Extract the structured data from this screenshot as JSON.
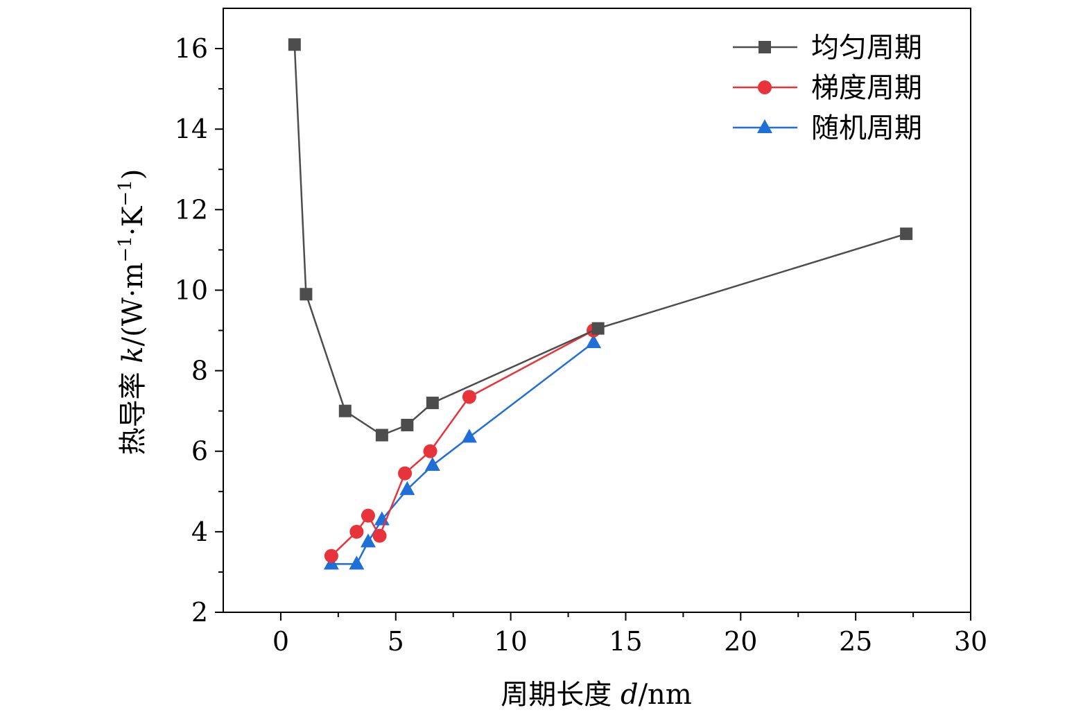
{
  "chart_data": {
    "type": "line",
    "title": "",
    "xlabel": "周期长度 d/nm",
    "ylabel": "热导率 k/(W·m−1·K−1)",
    "xlabel_parts": {
      "prefix": "周期长度 ",
      "var": "d",
      "suffix": "/nm"
    },
    "ylabel_parts": {
      "prefix": "热导率 ",
      "var": "k",
      "unit_a": "/(W·m",
      "sup_a": "−1",
      "unit_b": "·K",
      "sup_b": "−1",
      "close": ")"
    },
    "xlim": [
      -2.5,
      30
    ],
    "ylim": [
      2,
      17
    ],
    "x_ticks": [
      0,
      5,
      10,
      15,
      20,
      25,
      30
    ],
    "y_ticks": [
      2,
      4,
      6,
      8,
      10,
      12,
      14,
      16
    ],
    "legend_position": "top-right",
    "series": [
      {
        "name": "均匀周期",
        "color": "#4d4d4d",
        "marker": "square",
        "x": [
          0.6,
          1.1,
          2.8,
          4.4,
          5.5,
          6.6,
          13.8,
          27.2
        ],
        "y": [
          16.1,
          9.9,
          7.0,
          6.4,
          6.65,
          7.2,
          9.05,
          11.4
        ]
      },
      {
        "name": "梯度周期",
        "color": "#e8333a",
        "marker": "circle",
        "x": [
          2.2,
          3.3,
          3.8,
          4.3,
          5.4,
          6.5,
          8.2,
          13.6
        ],
        "y": [
          3.4,
          4.0,
          4.4,
          3.9,
          5.45,
          6.0,
          7.35,
          9.0
        ]
      },
      {
        "name": "随机周期",
        "color": "#1f6fd6",
        "marker": "triangle",
        "x": [
          2.2,
          3.3,
          3.8,
          4.4,
          5.5,
          6.6,
          8.2,
          13.6
        ],
        "y": [
          3.2,
          3.2,
          3.75,
          4.3,
          5.05,
          5.65,
          6.35,
          8.7
        ]
      }
    ]
  }
}
